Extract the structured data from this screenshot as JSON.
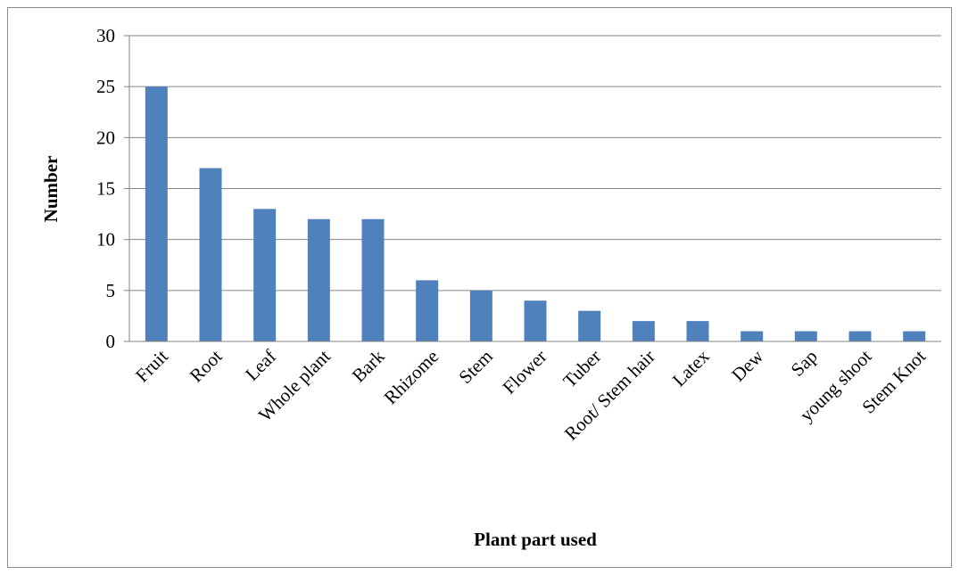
{
  "chart_data": {
    "type": "bar",
    "title": "",
    "xlabel": "Plant part used",
    "ylabel": "Number",
    "categories": [
      "Fruit",
      "Root",
      "Leaf",
      "Whole plant",
      "Bark",
      "Rhizome",
      "Stem",
      "Flower",
      "Tuber",
      "Root/ Stem hair",
      "Latex",
      "Dew",
      "Sap",
      "young shoot",
      "Stem Knot"
    ],
    "series": [
      {
        "values": [
          25,
          17,
          13,
          12,
          12,
          6,
          5,
          4,
          3,
          2,
          2,
          1,
          1,
          1,
          1
        ],
        "color": "#4f81bd"
      }
    ],
    "ylim": [
      0,
      30
    ],
    "yticks": [
      0,
      5,
      10,
      15,
      20,
      25,
      30
    ],
    "grid": true,
    "legend": "none"
  }
}
